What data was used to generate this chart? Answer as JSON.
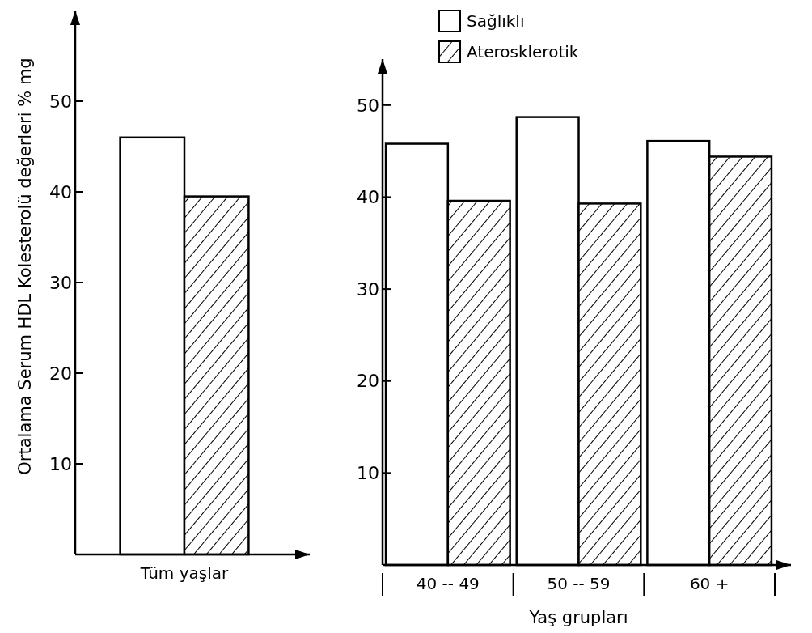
{
  "chart_data": [
    {
      "type": "bar",
      "ylabel": "Ortalama Serum HDL Kolesterolü değerleri % mg",
      "categories": [
        "Tüm yaşlar"
      ],
      "series": [
        {
          "color": "#ffffff",
          "values": [
            46.0
          ]
        },
        {
          "color": "#000000",
          "values": [
            39.5
          ]
        }
      ],
      "ylim": [
        0,
        60
      ],
      "yticks": [
        10,
        20,
        30,
        40,
        50
      ],
      "legend": false
    },
    {
      "type": "bar",
      "xlabel": "Yaş grupları",
      "categories": [
        "40 -- 49",
        "50 -- 59",
        "60 +"
      ],
      "series": [
        {
          "name": "Sağlıklı",
          "color": "#ffffff",
          "values": [
            45.8,
            48.7,
            46.1
          ]
        },
        {
          "name": "Aterosklerotik",
          "color": "#000000",
          "values": [
            39.6,
            39.3,
            44.4
          ]
        }
      ],
      "ylim": [
        0,
        55
      ],
      "yticks": [
        10,
        20,
        30,
        40,
        50
      ],
      "legend": "top"
    }
  ]
}
